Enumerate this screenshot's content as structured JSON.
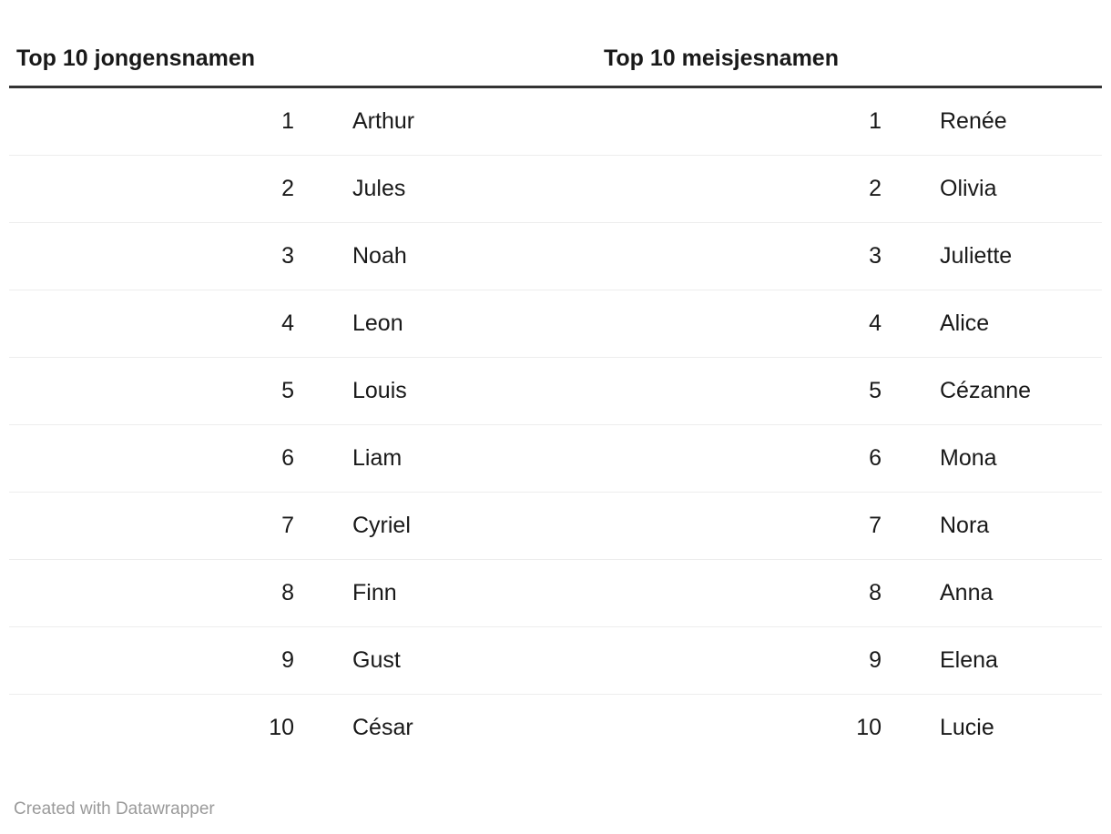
{
  "header": {
    "boys_title": "Top 10 jongensnamen",
    "girls_title": "Top 10 meisjesnamen"
  },
  "table": {
    "rows": [
      {
        "boy_rank": "1",
        "boy_name": "Arthur",
        "girl_rank": "1",
        "girl_name": "Renée"
      },
      {
        "boy_rank": "2",
        "boy_name": "Jules",
        "girl_rank": "2",
        "girl_name": "Olivia"
      },
      {
        "boy_rank": "3",
        "boy_name": "Noah",
        "girl_rank": "3",
        "girl_name": "Juliette"
      },
      {
        "boy_rank": "4",
        "boy_name": "Leon",
        "girl_rank": "4",
        "girl_name": "Alice"
      },
      {
        "boy_rank": "5",
        "boy_name": "Louis",
        "girl_rank": "5",
        "girl_name": "Cézanne"
      },
      {
        "boy_rank": "6",
        "boy_name": "Liam",
        "girl_rank": "6",
        "girl_name": "Mona"
      },
      {
        "boy_rank": "7",
        "boy_name": "Cyriel",
        "girl_rank": "7",
        "girl_name": "Nora"
      },
      {
        "boy_rank": "8",
        "boy_name": "Finn",
        "girl_rank": "8",
        "girl_name": "Anna"
      },
      {
        "boy_rank": "9",
        "boy_name": "Gust",
        "girl_rank": "9",
        "girl_name": "Elena"
      },
      {
        "boy_rank": "10",
        "boy_name": "César",
        "girl_rank": "10",
        "girl_name": "Lucie"
      }
    ]
  },
  "footer": {
    "credit": "Created with Datawrapper"
  },
  "colors": {
    "background": "#ffffff",
    "text": "#191919",
    "header_rule": "#333333",
    "row_separator": "#ededed",
    "credit_text": "#9a9a9a"
  },
  "chart_data": {
    "type": "table",
    "title": "",
    "columns": [
      "Top 10 jongensnamen",
      "Top 10 meisjesnamen"
    ],
    "ranks": [
      1,
      2,
      3,
      4,
      5,
      6,
      7,
      8,
      9,
      10
    ],
    "series": [
      {
        "name": "Top 10 jongensnamen",
        "values": [
          "Arthur",
          "Jules",
          "Noah",
          "Leon",
          "Louis",
          "Liam",
          "Cyriel",
          "Finn",
          "Gust",
          "César"
        ]
      },
      {
        "name": "Top 10 meisjesnamen",
        "values": [
          "Renée",
          "Olivia",
          "Juliette",
          "Alice",
          "Cézanne",
          "Mona",
          "Nora",
          "Anna",
          "Elena",
          "Lucie"
        ]
      }
    ],
    "layout_hints": {
      "grid": "horizontal row separators only",
      "header_rule": "thick dark bottom border",
      "rank_alignment": "right",
      "name_alignment": "left"
    }
  }
}
